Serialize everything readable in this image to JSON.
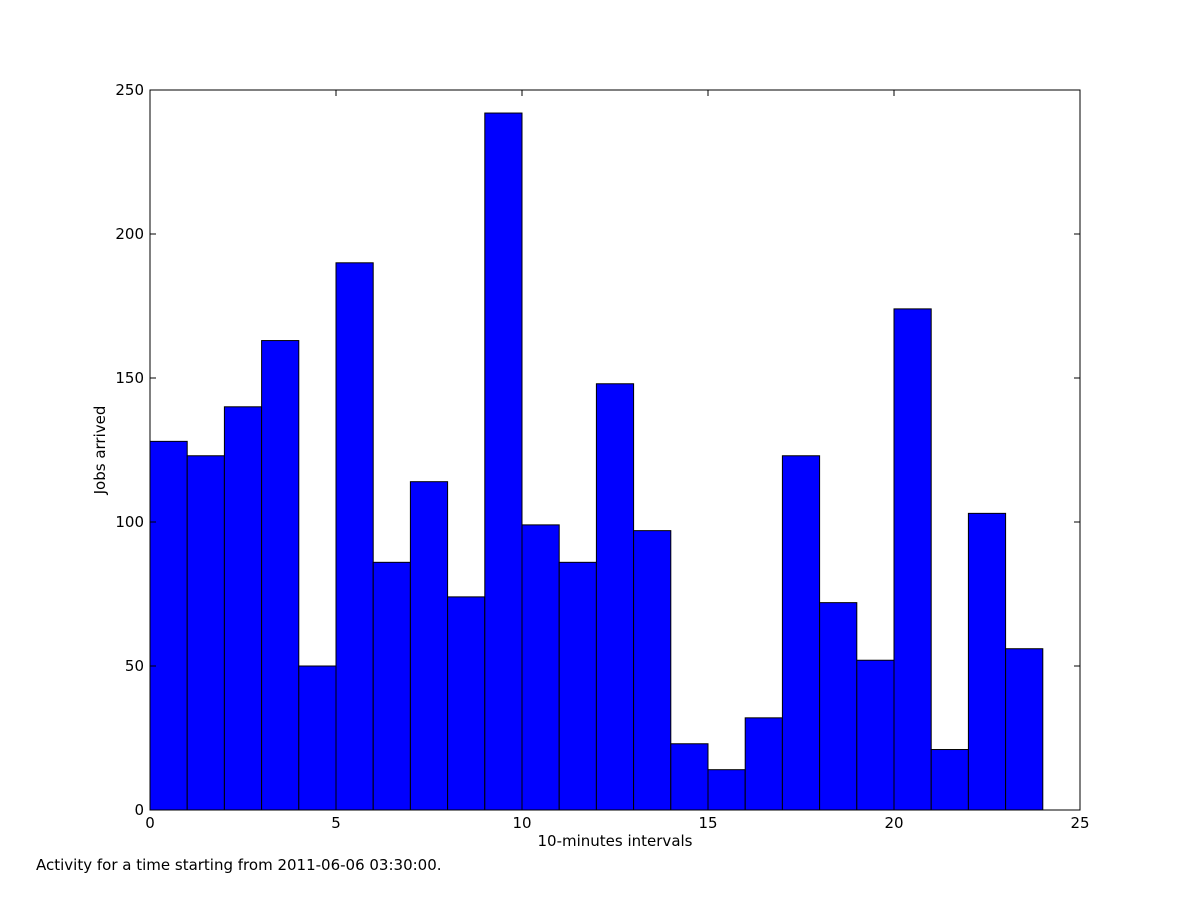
{
  "chart_data": {
    "type": "bar",
    "xlabel": "10-minutes intervals",
    "ylabel": "Jobs arrived",
    "caption": "Activity for a time starting from 2011-06-06 03:30:00.",
    "xlim": [
      0,
      25
    ],
    "ylim": [
      0,
      250
    ],
    "xticks": [
      0,
      5,
      10,
      15,
      20,
      25
    ],
    "yticks": [
      0,
      50,
      100,
      150,
      200,
      250
    ],
    "bin_width": 1,
    "bins": [
      {
        "x": 0,
        "value": 128
      },
      {
        "x": 1,
        "value": 123
      },
      {
        "x": 2,
        "value": 140
      },
      {
        "x": 3,
        "value": 163
      },
      {
        "x": 4,
        "value": 50
      },
      {
        "x": 5,
        "value": 190
      },
      {
        "x": 6,
        "value": 86
      },
      {
        "x": 7,
        "value": 114
      },
      {
        "x": 8,
        "value": 74
      },
      {
        "x": 9,
        "value": 242
      },
      {
        "x": 10,
        "value": 99
      },
      {
        "x": 11,
        "value": 86
      },
      {
        "x": 12,
        "value": 148
      },
      {
        "x": 13,
        "value": 97
      },
      {
        "x": 14,
        "value": 23
      },
      {
        "x": 15,
        "value": 14
      },
      {
        "x": 16,
        "value": 32
      },
      {
        "x": 17,
        "value": 123
      },
      {
        "x": 18,
        "value": 72
      },
      {
        "x": 19,
        "value": 52
      },
      {
        "x": 20,
        "value": 174
      },
      {
        "x": 21,
        "value": 21
      },
      {
        "x": 22,
        "value": 103
      },
      {
        "x": 23,
        "value": 56
      }
    ],
    "bar_color": "#0000ff",
    "edge_color": "#000000",
    "grid": false,
    "legend": "none"
  }
}
